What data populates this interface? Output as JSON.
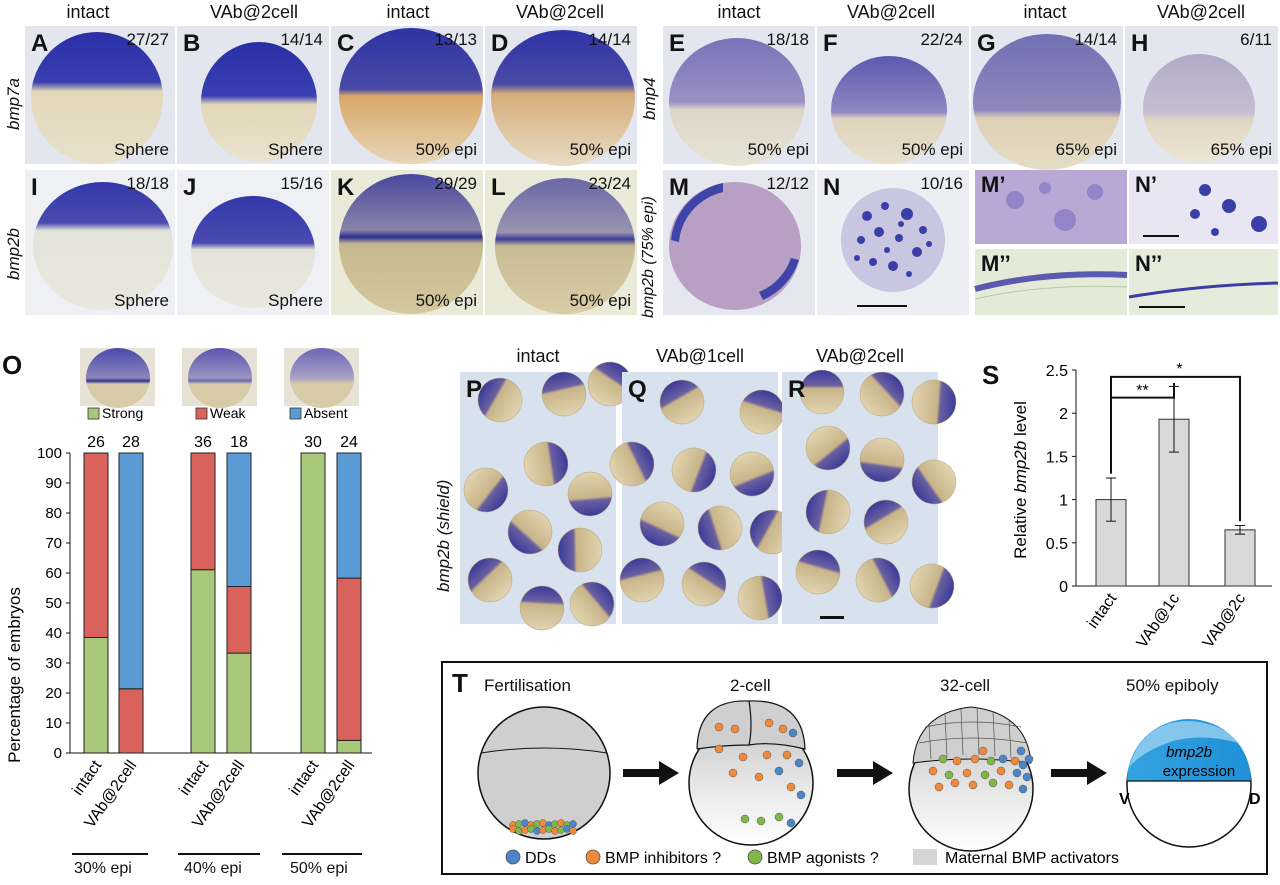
{
  "panels_top": {
    "col_headers": [
      "intact",
      "VAb@2cell",
      "intact",
      "VAb@2cell",
      "intact",
      "VAb@2cell",
      "intact",
      "VAb@2cell"
    ],
    "row1_gene_left": "bmp7a",
    "row1_gene_mid": "bmp4",
    "row2_gene_left": "bmp2b",
    "row2_gene_mid": "bmp2b (75% epi)",
    "row1": [
      {
        "label": "A",
        "count": "27/27",
        "stage": "Sphere"
      },
      {
        "label": "B",
        "count": "14/14",
        "stage": "Sphere"
      },
      {
        "label": "C",
        "count": "13/13",
        "stage": "50% epi"
      },
      {
        "label": "D",
        "count": "14/14",
        "stage": "50% epi"
      },
      {
        "label": "E",
        "count": "18/18",
        "stage": "50% epi"
      },
      {
        "label": "F",
        "count": "22/24",
        "stage": "50% epi"
      },
      {
        "label": "G",
        "count": "14/14",
        "stage": "65% epi"
      },
      {
        "label": "H",
        "count": "6/11",
        "stage": "65% epi"
      }
    ],
    "row2": [
      {
        "label": "I",
        "count": "18/18",
        "stage": "Sphere"
      },
      {
        "label": "J",
        "count": "15/16",
        "stage": "Sphere"
      },
      {
        "label": "K",
        "count": "29/29",
        "stage": "50% epi"
      },
      {
        "label": "L",
        "count": "23/24",
        "stage": "50% epi"
      },
      {
        "label": "M",
        "count": "12/12",
        "stage": ""
      },
      {
        "label": "N",
        "count": "10/16",
        "stage": ""
      }
    ],
    "small": [
      "M’",
      "N’",
      "M’’",
      "N’’"
    ]
  },
  "panel_O": {
    "label": "O",
    "legend": [
      "Strong",
      "Weak",
      "Absent"
    ],
    "ylabel": "Percentage of embryos",
    "stages": [
      "30% epi",
      "40% epi",
      "50% epi"
    ],
    "bar_labels": [
      "intact",
      "VAb@2cell",
      "intact",
      "VAb@2cell",
      "intact",
      "VAb@2cell"
    ]
  },
  "panel_PQR": {
    "gene_label": "bmp2b (shield)",
    "panels": [
      {
        "label": "P",
        "title": "intact"
      },
      {
        "label": "Q",
        "title": "VAb@1cell"
      },
      {
        "label": "R",
        "title": "VAb@2cell"
      }
    ]
  },
  "panel_S": {
    "label": "S",
    "ylabel": "Relative bmp2b level",
    "sig": [
      "**",
      "*"
    ]
  },
  "panel_T": {
    "label": "T",
    "stages": [
      "Fertilisation",
      "2-cell",
      "32-cell",
      "50% epiboly"
    ],
    "expr_gene": "bmp2b",
    "expr_word": "expression",
    "v": "V",
    "d": "D",
    "legend": [
      "DDs",
      "BMP inhibitors ?",
      "BMP agonists ?",
      "Maternal BMP activators"
    ]
  },
  "colors": {
    "strong": "#a8c97a",
    "weak": "#d9635c",
    "absent": "#5b9bd5",
    "stain": "#3a3fa8",
    "dd": "#4a86c8",
    "inhib": "#f08a3a",
    "agon": "#7fb84a",
    "maternal": "#d5d5d5"
  },
  "chart_data": [
    {
      "type": "bar",
      "stacked": true,
      "categories": [
        "30% epi intact",
        "30% epi VAb@2cell",
        "40% epi intact",
        "40% epi VAb@2cell",
        "50% epi intact",
        "50% epi VAb@2cell"
      ],
      "tick_labels": [
        "intact",
        "VAb@2cell",
        "intact",
        "VAb@2cell",
        "intact",
        "VAb@2cell"
      ],
      "n": [
        26,
        28,
        36,
        18,
        30,
        24
      ],
      "series": [
        {
          "name": "Strong",
          "values": [
            38.5,
            0,
            61.1,
            33.3,
            100,
            4.2
          ]
        },
        {
          "name": "Weak",
          "values": [
            61.5,
            21.4,
            38.9,
            22.2,
            0,
            54.1
          ]
        },
        {
          "name": "Absent",
          "values": [
            0,
            78.6,
            0,
            44.5,
            0,
            41.7
          ]
        }
      ],
      "ylabel": "Percentage of embryos",
      "ylim": [
        0,
        100
      ],
      "yticks": [
        0,
        10,
        20,
        30,
        40,
        50,
        60,
        70,
        80,
        90,
        100
      ]
    },
    {
      "type": "bar",
      "categories": [
        "intact",
        "VAb@1c",
        "VAb@2c"
      ],
      "values": [
        1.0,
        1.93,
        0.65
      ],
      "errors": [
        0.25,
        0.38,
        0.05
      ],
      "ylabel": "Relative bmp2b level",
      "ylim": [
        0,
        2.5
      ],
      "yticks": [
        0,
        0.5,
        1,
        1.5,
        2,
        2.5
      ],
      "significance": [
        {
          "from": "intact",
          "to": "VAb@1c",
          "label": "**"
        },
        {
          "from": "intact",
          "to": "VAb@2c",
          "label": "*"
        }
      ]
    }
  ]
}
